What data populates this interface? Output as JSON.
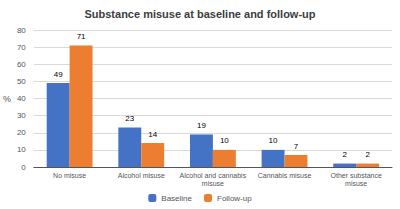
{
  "chart_data": {
    "type": "bar",
    "title": "Substance misuse at baseline and follow-up",
    "categories": [
      "No misuse",
      "Alcohol misuse",
      "Alcohol and cannabis\nmisuse",
      "Cannabis misuse",
      "Other substance\nmisuse"
    ],
    "series": [
      {
        "name": "Baseline",
        "color": "#4472C4",
        "values": [
          49,
          23,
          19,
          10,
          2
        ]
      },
      {
        "name": "Follow-up",
        "color": "#ED7D31",
        "values": [
          71,
          14,
          10,
          7,
          2
        ]
      }
    ],
    "ylabel": "%",
    "ylim": [
      0,
      80
    ],
    "yticks": [
      0,
      10,
      20,
      30,
      40,
      50,
      60,
      70,
      80
    ],
    "grid": true,
    "legend": "bottom",
    "data_labels": true
  }
}
